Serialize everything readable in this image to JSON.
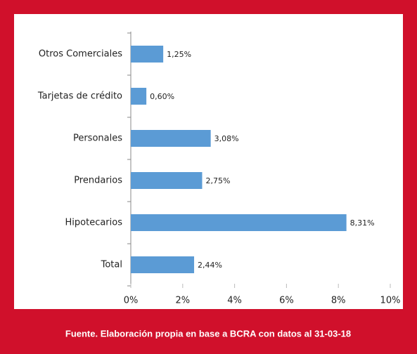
{
  "chart_data": {
    "type": "bar",
    "orientation": "horizontal",
    "categories": [
      "Otros Comerciales",
      "Tarjetas de crédito",
      "Personales",
      "Prendarios",
      "Hipotecarios",
      "Total"
    ],
    "values": [
      1.25,
      0.6,
      3.08,
      2.75,
      8.31,
      2.44
    ],
    "value_labels": [
      "1,25%",
      "0,60%",
      "3,08%",
      "2,75%",
      "8,31%",
      "2,44%"
    ],
    "color": "#5b9bd5",
    "xlim": [
      0,
      10
    ],
    "xticks": [
      {
        "value": 0,
        "label": "0%"
      },
      {
        "value": 2,
        "label": "2%"
      },
      {
        "value": 4,
        "label": "4%"
      },
      {
        "value": 6,
        "label": "6%"
      },
      {
        "value": 8,
        "label": "8%"
      },
      {
        "value": 10,
        "label": "10%"
      }
    ],
    "grid": false,
    "source": "Fuente. Elaboración propia en base a BCRA con datos al 31-03-18"
  }
}
